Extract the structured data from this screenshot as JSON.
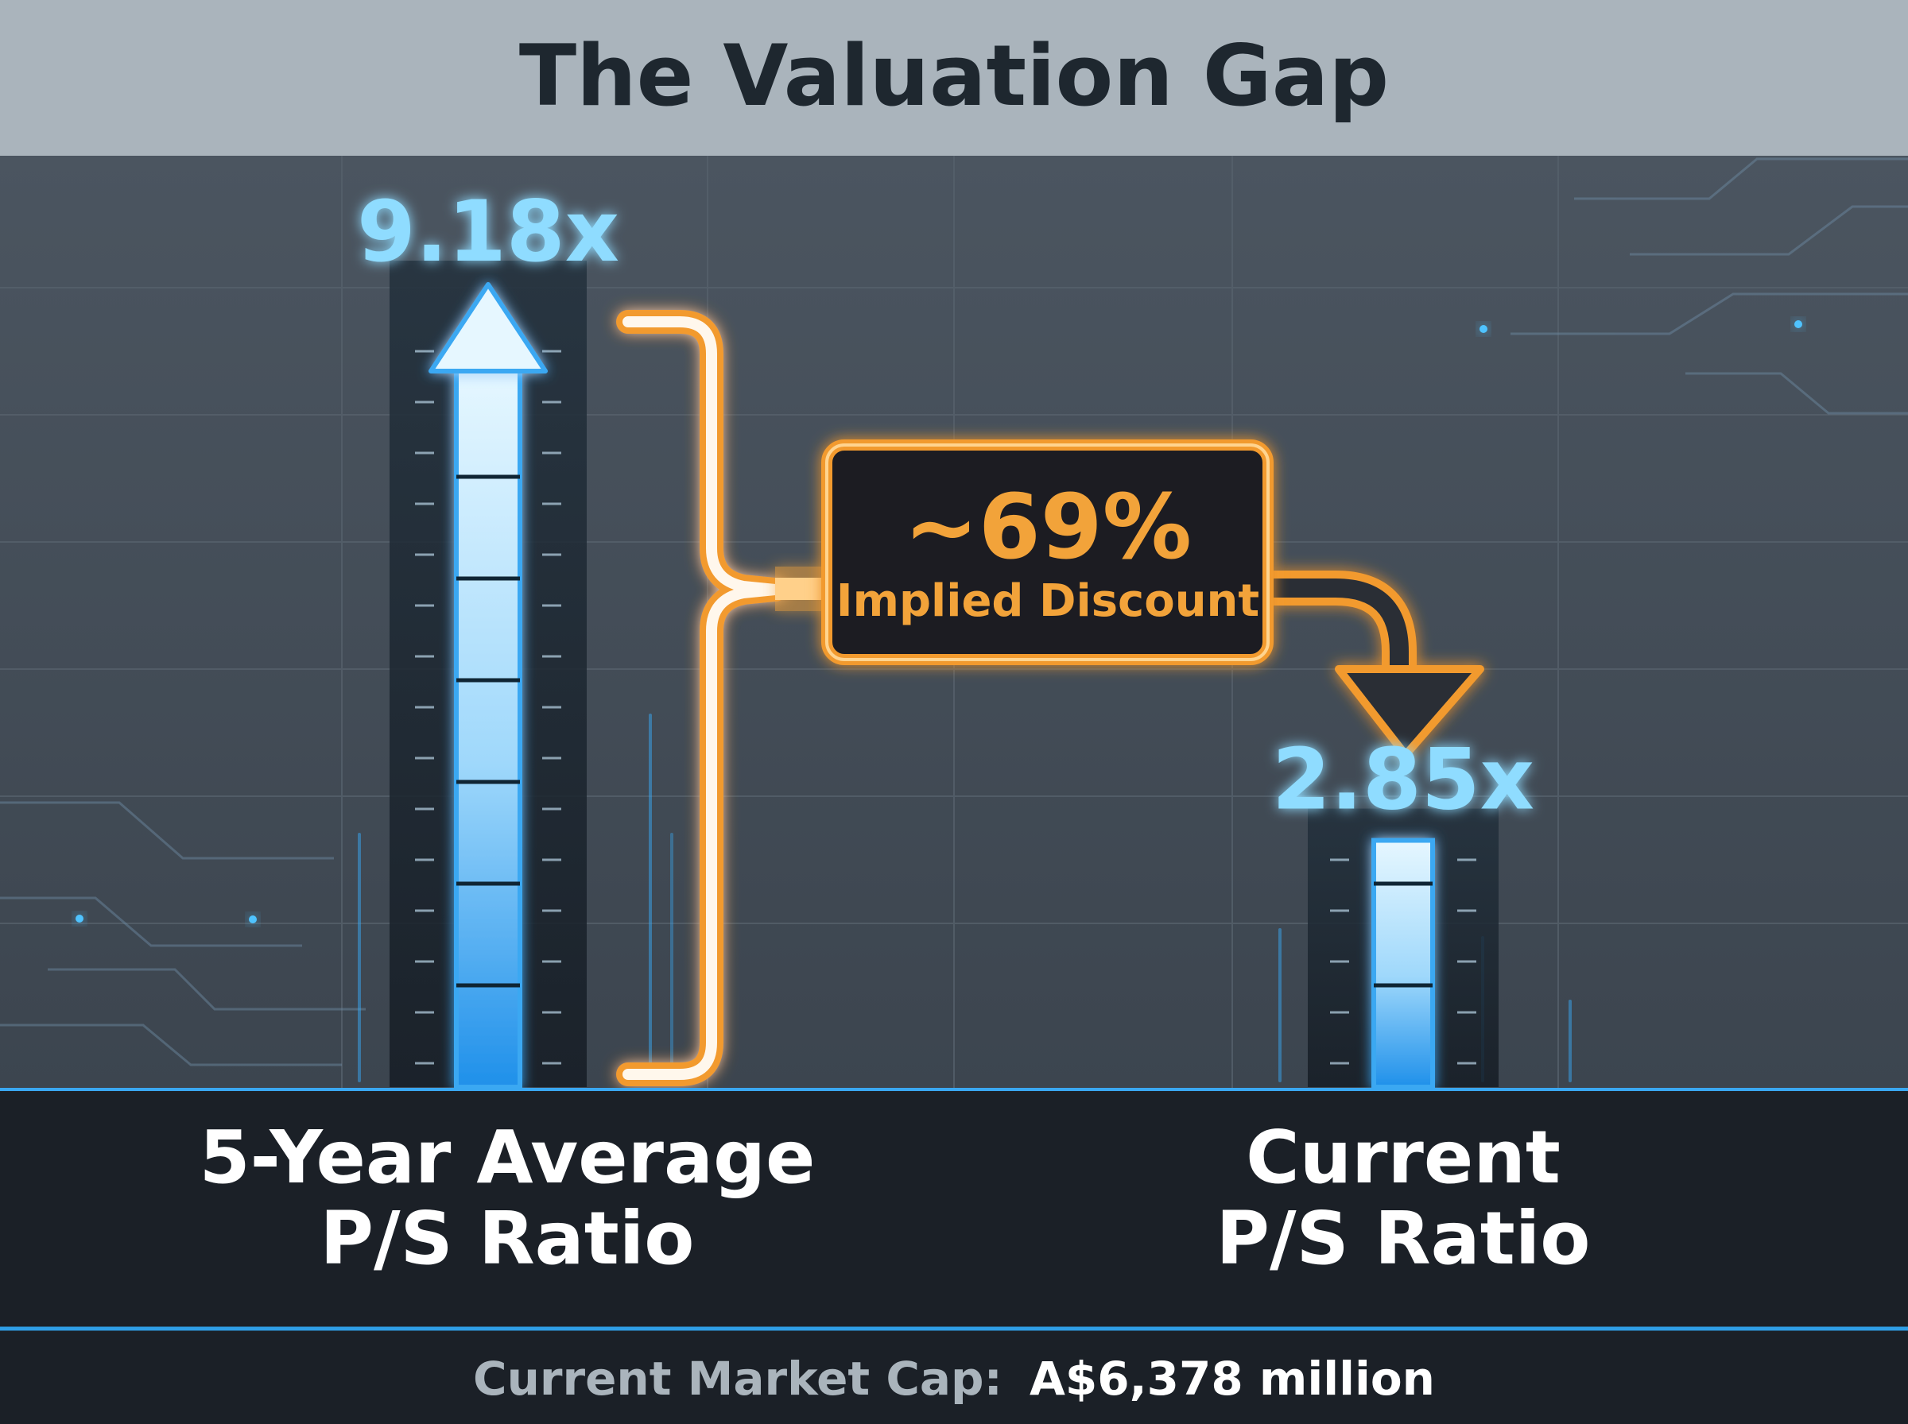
{
  "title": "The Valuation Gap",
  "chart_data": {
    "type": "bar",
    "title": "The Valuation Gap",
    "categories": [
      "5-Year Average P/S Ratio",
      "Current P/S Ratio"
    ],
    "category_lines": [
      [
        "5-Year Average",
        "P/S Ratio"
      ],
      [
        "Current",
        "P/S Ratio"
      ]
    ],
    "values": [
      9.18,
      2.85
    ],
    "value_labels": [
      "9.18x",
      "2.85x"
    ],
    "annotation": {
      "value": "~69%",
      "label": "Implied Discount"
    }
  },
  "footer": {
    "label": "Current Market Cap:",
    "value": "A$6,378 million"
  },
  "colors": {
    "title_bar": "#aab4bc",
    "title_text": "#1e272f",
    "panel": "#454f59",
    "bar_blue": "#3aa8f2",
    "bar_light": "#dff4ff",
    "value_text": "#8fdcff",
    "accent_orange": "#f2a33a",
    "base_band": "#1b2027",
    "footer_label": "#aab4bc",
    "footer_value": "#ffffff"
  }
}
